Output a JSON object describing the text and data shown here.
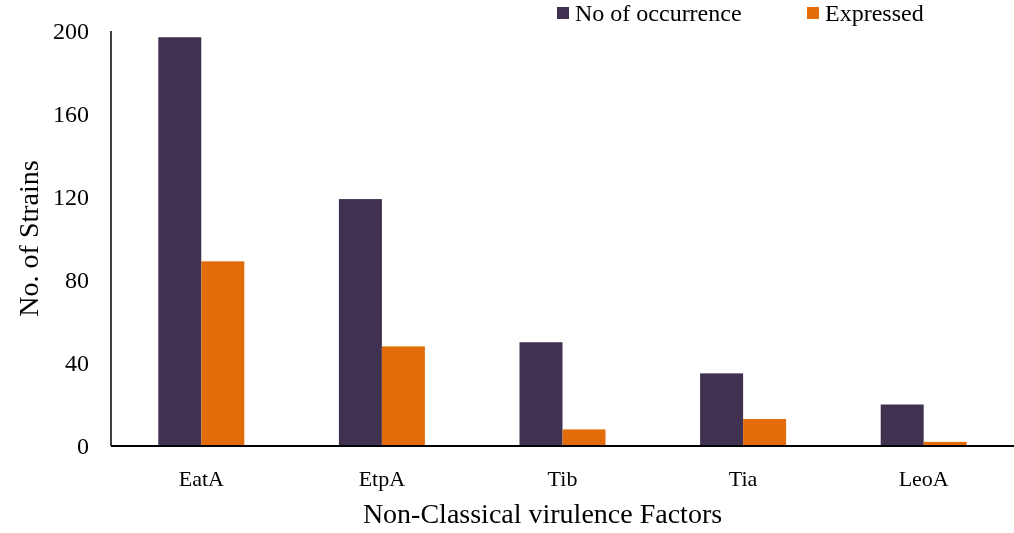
{
  "chart_data": {
    "type": "bar",
    "xlabel": "Non-Classical virulence Factors",
    "ylabel": "No. of Strains",
    "categories": [
      "EatA",
      "EtpA",
      "Tib",
      "Tia",
      "LeoA"
    ],
    "series": [
      {
        "name": "No of occurrence",
        "color": "#413151",
        "values": [
          197,
          119,
          50,
          35,
          20
        ]
      },
      {
        "name": "Expressed",
        "color": "#e36c0a",
        "values": [
          89,
          48,
          8,
          13,
          2
        ]
      }
    ],
    "ylim": [
      0,
      200
    ],
    "yticks": [
      0,
      40,
      80,
      120,
      160,
      200
    ],
    "grid": false,
    "legend": "top right"
  }
}
